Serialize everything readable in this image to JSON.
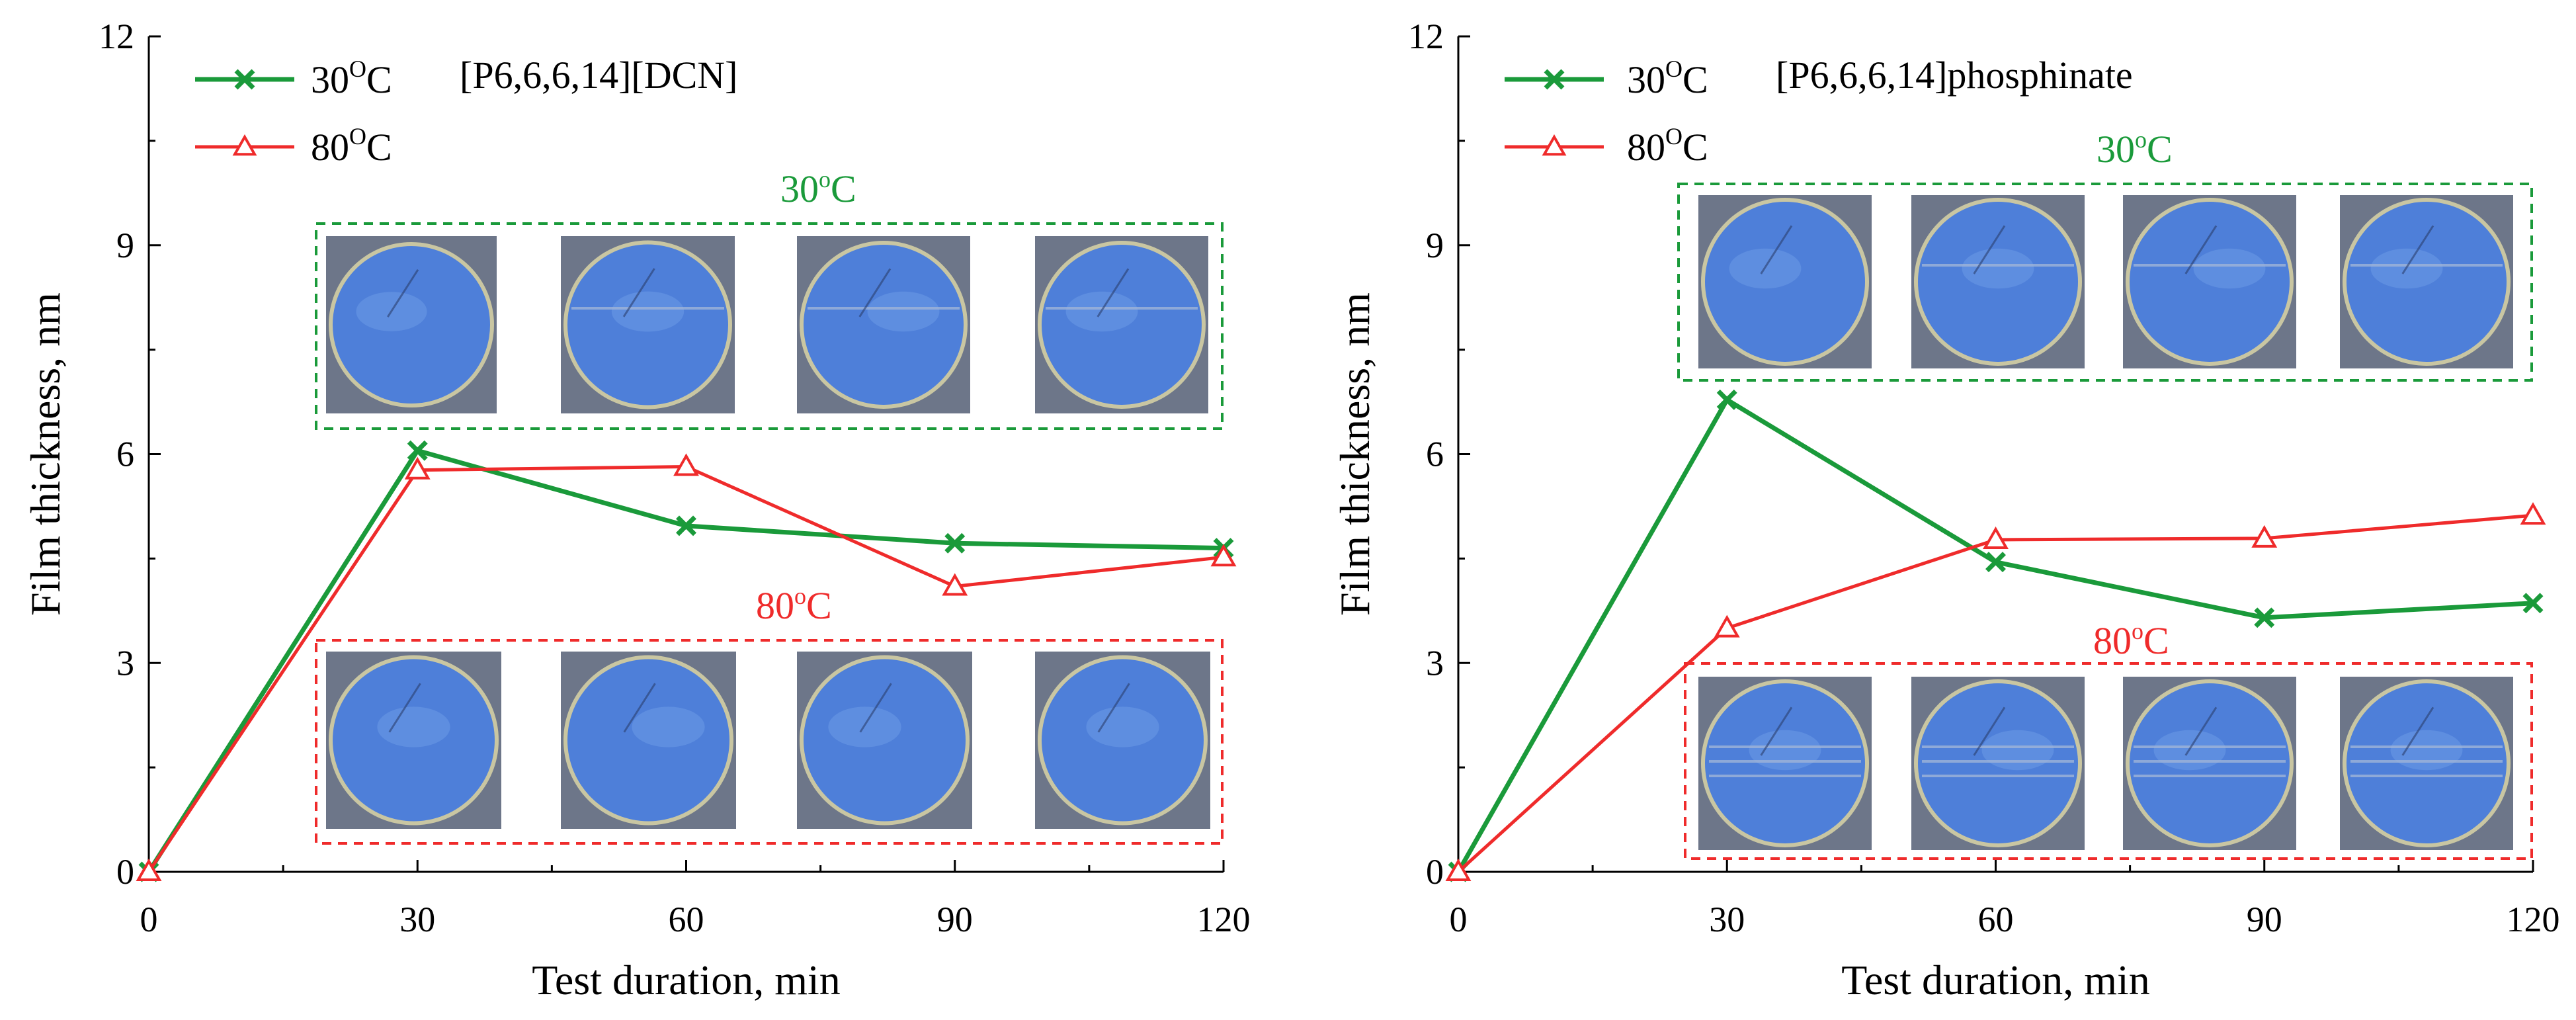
{
  "colors": {
    "series_30": "#1a9a3a",
    "series_80": "#ef2b2b",
    "title_left": "#c040d0",
    "title_right": "#1a9a3a",
    "inset_bg": "#6d7689",
    "inset_disc": "#4e7fd9",
    "inset_rim": "#c9c6a2"
  },
  "chart_data": [
    {
      "type": "line",
      "title": "[P6,6,6,14][DCN]",
      "xlabel": "Test duration, min",
      "ylabel": "Film thickness, nm",
      "xlim": [
        0,
        120
      ],
      "ylim": [
        0,
        12
      ],
      "xticks": [
        0,
        30,
        60,
        90,
        120
      ],
      "yticks": [
        0,
        3,
        6,
        9,
        12
      ],
      "x": [
        0,
        30,
        60,
        90,
        120
      ],
      "series": [
        {
          "name": "30",
          "unit_sup": "O",
          "unit": "C",
          "marker": "x",
          "values": [
            0,
            6.05,
            4.97,
            4.72,
            4.65
          ]
        },
        {
          "name": "80",
          "unit_sup": "O",
          "unit": "C",
          "marker": "triangle",
          "values": [
            0,
            5.77,
            5.82,
            4.1,
            4.52
          ]
        }
      ],
      "insets": [
        {
          "label": "30",
          "sup": "o",
          "unit": "C",
          "series_index": 0,
          "images": 4
        },
        {
          "label": "80",
          "sup": "o",
          "unit": "C",
          "series_index": 1,
          "images": 4
        }
      ]
    },
    {
      "type": "line",
      "title": "[P6,6,6,14]phosphinate",
      "xlabel": "Test duration, min",
      "ylabel": "Film thickness, nm",
      "xlim": [
        0,
        120
      ],
      "ylim": [
        0,
        12
      ],
      "xticks": [
        0,
        30,
        60,
        90,
        120
      ],
      "yticks": [
        0,
        3,
        6,
        9,
        12
      ],
      "x": [
        0,
        30,
        60,
        90,
        120
      ],
      "series": [
        {
          "name": "30",
          "unit_sup": "O",
          "unit": "C",
          "marker": "x",
          "values": [
            0,
            6.78,
            4.45,
            3.65,
            3.86
          ]
        },
        {
          "name": "80",
          "unit_sup": "O",
          "unit": "C",
          "marker": "triangle",
          "values": [
            0,
            3.5,
            4.77,
            4.79,
            5.12
          ]
        }
      ],
      "insets": [
        {
          "label": "30",
          "sup": "o",
          "unit": "C",
          "series_index": 0,
          "images": 4
        },
        {
          "label": "80",
          "sup": "o",
          "unit": "C",
          "series_index": 1,
          "images": 4
        }
      ]
    }
  ]
}
